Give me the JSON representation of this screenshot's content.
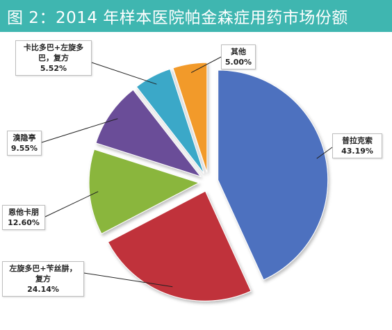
{
  "title": "图 2：2014 年样本医院帕金森症用药市场份额",
  "chart_data": {
    "type": "pie",
    "title": "图 2：2014 年样本医院帕金森症用药市场份额",
    "slices": [
      {
        "label": "普拉克索",
        "value": 43.19,
        "display": "43.19%",
        "color": "#4e71bf"
      },
      {
        "label": "左旋多巴+苄丝肼，复方",
        "value": 24.14,
        "display": "24.14%",
        "color": "#c0333a"
      },
      {
        "label": "恩他卡朋",
        "value": 12.6,
        "display": "12.60%",
        "color": "#8ab63e"
      },
      {
        "label": "溴隐亭",
        "value": 9.55,
        "display": "9.55%",
        "color": "#6b4d98"
      },
      {
        "label": "卡比多巴+左旋多巴，复方",
        "value": 5.52,
        "display": "5.52%",
        "color": "#3aa8c8"
      },
      {
        "label": "其他",
        "value": 5.0,
        "display": "5.00%",
        "color": "#f29a2c"
      }
    ],
    "exploded": true,
    "legend": "none"
  }
}
